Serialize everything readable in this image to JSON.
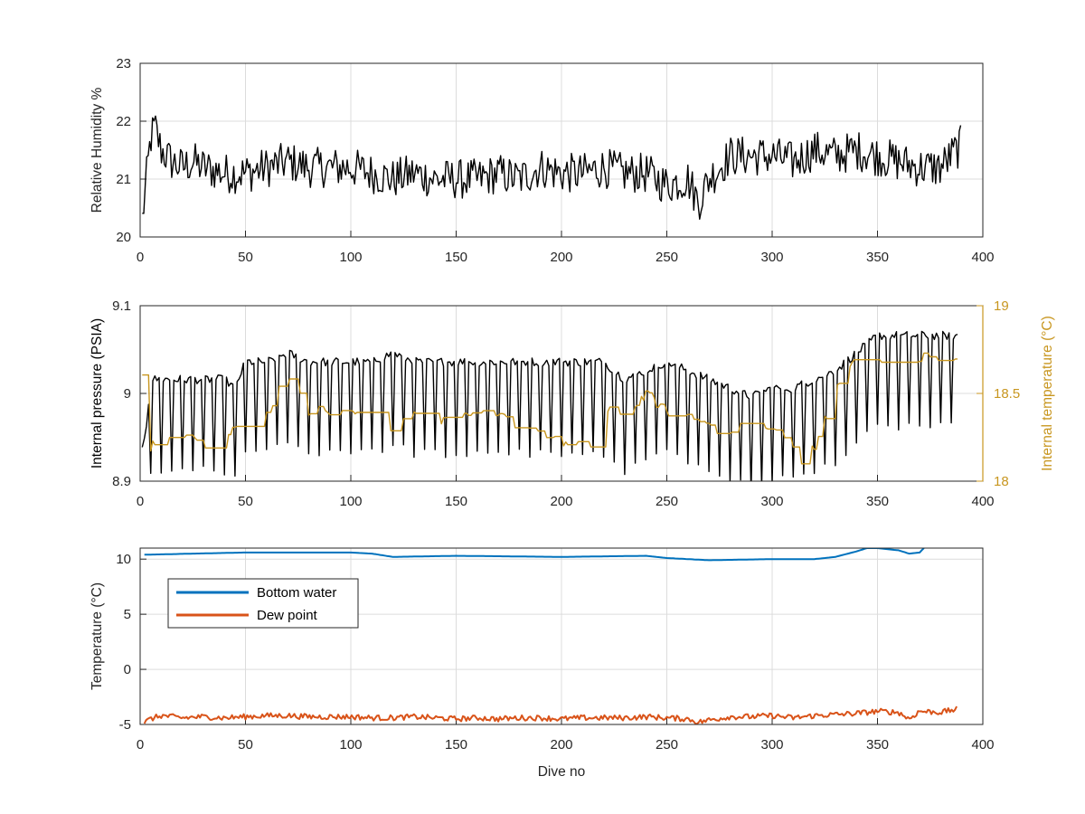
{
  "colors": {
    "axis": "#262626",
    "grid": "#dcdcdc",
    "black_series": "#000000",
    "right_axis": "#c8961f",
    "bottom_water": "#0072bd",
    "dew_point": "#d95319"
  },
  "chart_data": [
    {
      "type": "line",
      "title": "",
      "xlabel": "",
      "ylabel": "Relative Humidity %",
      "xlim": [
        0,
        400
      ],
      "ylim": [
        20,
        23
      ],
      "xticks": [
        "0",
        "50",
        "100",
        "150",
        "200",
        "250",
        "300",
        "350",
        "400"
      ],
      "yticks": [
        "20",
        "21",
        "22",
        "23"
      ],
      "grid": true,
      "series": [
        {
          "color": "#000000",
          "x": [
            1,
            3,
            5,
            7,
            10,
            15,
            20,
            25,
            30,
            40,
            50,
            60,
            70,
            80,
            90,
            100,
            110,
            120,
            130,
            140,
            150,
            160,
            170,
            180,
            190,
            200,
            210,
            220,
            230,
            240,
            250,
            260,
            265,
            270,
            280,
            290,
            300,
            310,
            320,
            330,
            340,
            350,
            360,
            370,
            380,
            390
          ],
          "y": [
            20.3,
            21.0,
            21.7,
            21.9,
            21.5,
            21.3,
            21.2,
            21.3,
            21.2,
            21.1,
            21.1,
            21.2,
            21.3,
            21.2,
            21.2,
            21.2,
            21.1,
            21.0,
            21.1,
            21.0,
            21.0,
            21.0,
            21.1,
            21.0,
            21.2,
            21.1,
            21.1,
            21.2,
            21.1,
            21.1,
            20.9,
            21.0,
            20.6,
            21.0,
            21.4,
            21.4,
            21.4,
            21.3,
            21.5,
            21.4,
            21.5,
            21.4,
            21.3,
            21.2,
            21.2,
            21.6
          ]
        }
      ]
    },
    {
      "type": "line",
      "title": "",
      "xlabel": "",
      "ylabel": "Internal pressure (PSIA)",
      "y2label": "Internal temperature (°C)",
      "xlim": [
        0,
        400
      ],
      "ylim": [
        8.9,
        9.1
      ],
      "y2lim": [
        18,
        19
      ],
      "xticks": [
        "0",
        "50",
        "100",
        "150",
        "200",
        "250",
        "300",
        "350",
        "400"
      ],
      "yticks": [
        "8.9",
        "9",
        "9.1"
      ],
      "y2ticks": [
        "18",
        "18.5",
        "19"
      ],
      "grid": true,
      "series": [
        {
          "axis": "left",
          "color": "#000000",
          "x": [
            1,
            3,
            5,
            10,
            20,
            30,
            40,
            45,
            50,
            60,
            70,
            80,
            90,
            100,
            110,
            120,
            130,
            140,
            150,
            160,
            170,
            180,
            190,
            200,
            210,
            220,
            230,
            240,
            250,
            260,
            270,
            280,
            290,
            300,
            310,
            320,
            330,
            340,
            350,
            360,
            370,
            380,
            388
          ],
          "y": [
            8.92,
            8.95,
            9.0,
            9.0,
            9.0,
            9.0,
            9.0,
            8.99,
            9.02,
            9.02,
            9.03,
            9.02,
            9.02,
            9.02,
            9.02,
            9.03,
            9.02,
            9.02,
            9.02,
            9.02,
            9.02,
            9.02,
            9.02,
            9.02,
            9.02,
            9.02,
            9.0,
            9.01,
            9.02,
            9.01,
            9.0,
            8.99,
            8.98,
            8.99,
            8.99,
            9.0,
            9.01,
            9.03,
            9.05,
            9.05,
            9.05,
            9.05,
            9.05
          ]
        },
        {
          "axis": "right",
          "color": "#c8961f",
          "x": [
            1,
            3,
            5,
            10,
            20,
            30,
            40,
            45,
            50,
            60,
            70,
            80,
            90,
            100,
            110,
            120,
            130,
            140,
            150,
            160,
            170,
            180,
            190,
            200,
            210,
            212,
            215,
            220,
            230,
            240,
            250,
            260,
            270,
            280,
            290,
            300,
            310,
            315,
            320,
            330,
            340,
            350,
            360,
            370,
            380,
            388
          ],
          "y": [
            18.6,
            18.4,
            18.2,
            18.2,
            18.3,
            18.2,
            18.2,
            18.3,
            18.4,
            18.4,
            18.6,
            18.4,
            18.4,
            18.4,
            18.4,
            18.3,
            18.4,
            18.3,
            18.4,
            18.4,
            18.4,
            18.3,
            18.3,
            18.2,
            18.2,
            18.0,
            18.3,
            18.4,
            18.4,
            18.5,
            18.4,
            18.4,
            18.3,
            18.3,
            18.3,
            18.3,
            18.2,
            18.1,
            18.2,
            18.5,
            18.7,
            18.7,
            18.7,
            18.7,
            18.7,
            18.7
          ]
        }
      ]
    },
    {
      "type": "line",
      "title": "",
      "xlabel": "Dive no",
      "ylabel": "Temperature (°C)",
      "xlim": [
        0,
        400
      ],
      "ylim": [
        -5,
        11
      ],
      "xticks": [
        "0",
        "50",
        "100",
        "150",
        "200",
        "250",
        "300",
        "350",
        "400"
      ],
      "yticks": [
        "-5",
        "0",
        "5",
        "10"
      ],
      "grid": true,
      "legend_position": "top-left",
      "series": [
        {
          "name": "Bottom water",
          "color": "#0072bd",
          "x": [
            2,
            50,
            100,
            110,
            120,
            150,
            200,
            240,
            250,
            270,
            300,
            320,
            330,
            340,
            345,
            350,
            360,
            365,
            370,
            372
          ],
          "y": [
            10.4,
            10.6,
            10.6,
            10.5,
            10.2,
            10.3,
            10.2,
            10.3,
            10.1,
            9.9,
            10.0,
            10.0,
            10.2,
            10.7,
            11.0,
            11.0,
            10.8,
            10.5,
            10.6,
            11.0
          ]
        },
        {
          "name": "Dew point",
          "color": "#d95319",
          "x": [
            2,
            5,
            10,
            20,
            30,
            40,
            50,
            60,
            70,
            80,
            90,
            100,
            110,
            120,
            130,
            140,
            150,
            160,
            170,
            180,
            190,
            200,
            210,
            220,
            230,
            240,
            250,
            260,
            265,
            270,
            280,
            290,
            300,
            310,
            320,
            330,
            340,
            350,
            360,
            365,
            370,
            380,
            388
          ],
          "y": [
            -4.8,
            -4.5,
            -4.2,
            -4.4,
            -4.3,
            -4.4,
            -4.3,
            -4.2,
            -4.2,
            -4.3,
            -4.3,
            -4.3,
            -4.4,
            -4.4,
            -4.3,
            -4.4,
            -4.5,
            -4.4,
            -4.5,
            -4.4,
            -4.4,
            -4.5,
            -4.4,
            -4.4,
            -4.4,
            -4.3,
            -4.4,
            -4.5,
            -4.8,
            -4.6,
            -4.3,
            -4.3,
            -4.2,
            -4.4,
            -4.2,
            -4.1,
            -4.0,
            -3.8,
            -3.9,
            -4.5,
            -3.8,
            -3.9,
            -3.6
          ]
        }
      ]
    }
  ]
}
